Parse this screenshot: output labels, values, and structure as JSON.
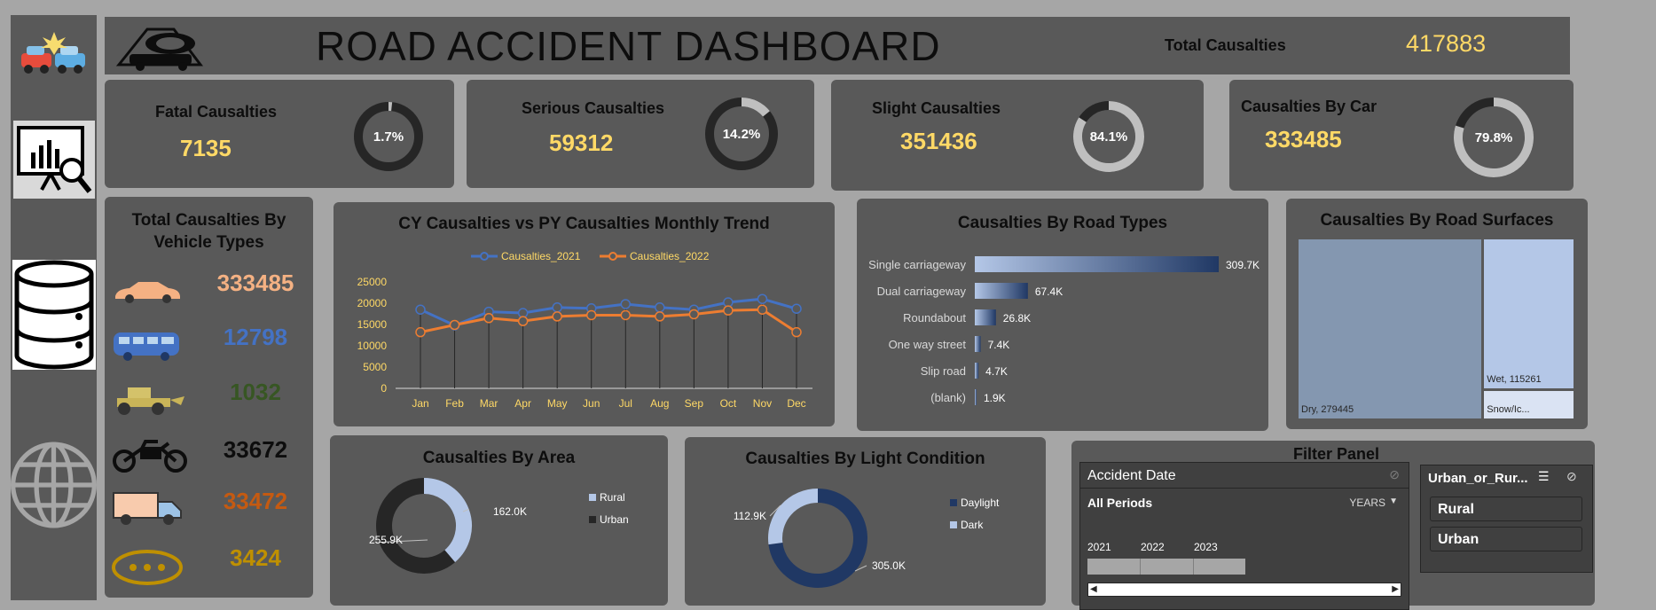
{
  "header": {
    "title": "ROAD ACCIDENT DASHBOARD",
    "total_label": "Total Causalties",
    "total_value": "417883"
  },
  "sidebar": {
    "icons": [
      "car-crash-icon",
      "presentation-analytics-icon",
      "database-icon",
      "globe-icon"
    ]
  },
  "kpis": [
    {
      "label": "Fatal Causalties",
      "value": "7135",
      "pct": "1.7%",
      "fraction": 0.017
    },
    {
      "label": "Serious Causalties",
      "value": "59312",
      "pct": "14.2%",
      "fraction": 0.142
    },
    {
      "label": "Slight Causalties",
      "value": "351436",
      "pct": "84.1%",
      "fraction": 0.841
    },
    {
      "label": "Causalties By Car",
      "value": "333485",
      "pct": "79.8%",
      "fraction": 0.798
    }
  ],
  "vehicle_types": {
    "title_line1": "Total Causalties By",
    "title_line2": "Vehicle Types",
    "items": [
      {
        "icon": "car-icon",
        "value": "333485",
        "color": "#f4b183"
      },
      {
        "icon": "van-icon",
        "value": "12798",
        "color": "#4472c4"
      },
      {
        "icon": "tractor-icon",
        "value": "1032",
        "color": "#375623"
      },
      {
        "icon": "motorcycle-icon",
        "value": "33672",
        "color": "#0d0d0d"
      },
      {
        "icon": "truck-icon",
        "value": "33472",
        "color": "#c55a11"
      },
      {
        "icon": "other-vehicle-icon",
        "value": "3424",
        "color": "#bf9000"
      }
    ]
  },
  "trend_chart": {
    "title": "CY Causalties vs PY Causalties Monthly Trend",
    "chart_data": {
      "type": "line",
      "categories": [
        "Jan",
        "Feb",
        "Mar",
        "Apr",
        "May",
        "Jun",
        "Jul",
        "Aug",
        "Sep",
        "Oct",
        "Nov",
        "Dec"
      ],
      "series": [
        {
          "name": "Causalties_2021",
          "color": "#4472c4",
          "values": [
            18500,
            14800,
            18000,
            17700,
            19000,
            18800,
            19800,
            19000,
            18500,
            20200,
            21000,
            18700
          ]
        },
        {
          "name": "Causalties_2022",
          "color": "#ed7d31",
          "values": [
            13200,
            14900,
            16500,
            15800,
            16900,
            17200,
            17200,
            16900,
            17400,
            18300,
            18500,
            13200
          ]
        }
      ],
      "yticks": [
        "0",
        "5000",
        "10000",
        "15000",
        "20000",
        "25000"
      ],
      "ylim": [
        0,
        25000
      ],
      "legend": "top"
    }
  },
  "road_types": {
    "title": "Causalties By Road Types",
    "chart_data": {
      "type": "bar",
      "categories": [
        "Single carriageway",
        "Dual carriageway",
        "Roundabout",
        "One way street",
        "Slip road",
        "(blank)"
      ],
      "values": [
        309700,
        67400,
        26800,
        7400,
        4700,
        1900
      ],
      "labels": [
        "309.7K",
        "67.4K",
        "26.8K",
        "7.4K",
        "4.7K",
        "1.9K"
      ]
    }
  },
  "road_surfaces": {
    "title": "Causalties By Road Surfaces",
    "chart_data": {
      "type": "treemap",
      "items": [
        {
          "label": "Dry, 279445",
          "value": 279445,
          "color": "#8497b0"
        },
        {
          "label": "Wet, 115261",
          "value": 115261,
          "color": "#b4c7e7"
        },
        {
          "label": "Snow/Ic...",
          "value": 23177,
          "color": "#dae3f3"
        }
      ]
    }
  },
  "area": {
    "title": "Causalties By Area",
    "chart_data": {
      "type": "pie",
      "labels": [
        "Rural",
        "Urban"
      ],
      "values": [
        162000,
        255900
      ],
      "value_labels": [
        "162.0K",
        "255.9K"
      ],
      "colors": [
        "#b4c7e7",
        "#262626"
      ]
    }
  },
  "light": {
    "title": "Causalties By Light Condition",
    "chart_data": {
      "type": "pie",
      "labels": [
        "Daylight",
        "Dark"
      ],
      "values": [
        305000,
        112900
      ],
      "value_labels": [
        "305.0K",
        "112.9K"
      ],
      "colors": [
        "#203864",
        "#b4c7e7"
      ]
    }
  },
  "filter": {
    "title": "Filter Panel",
    "date_slicer": {
      "header": "Accident Date",
      "periods": "All Periods",
      "level": "YEARS",
      "years": [
        "2021",
        "2022",
        "2023"
      ]
    },
    "area_slicer": {
      "header": "Urban_or_Rur...",
      "options": [
        "Rural",
        "Urban"
      ]
    }
  }
}
